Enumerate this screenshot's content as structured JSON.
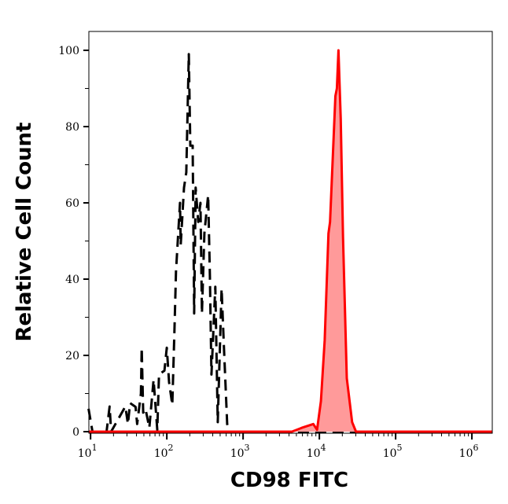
{
  "chart_data": {
    "type": "line",
    "title": "",
    "xlabel": "CD98 FITC",
    "ylabel": "Relative Cell Count",
    "x_scale": "log",
    "xlim": [
      9.5,
      1850000
    ],
    "ylim": [
      0,
      105
    ],
    "x_ticks": [
      {
        "base": "10",
        "exp": "1",
        "value": 10
      },
      {
        "base": "10",
        "exp": "2",
        "value": 100
      },
      {
        "base": "10",
        "exp": "3",
        "value": 1000
      },
      {
        "base": "10",
        "exp": "4",
        "value": 10000
      },
      {
        "base": "10",
        "exp": "5",
        "value": 100000
      },
      {
        "base": "10",
        "exp": "6",
        "value": 1000000
      }
    ],
    "y_ticks": [
      "0",
      "20",
      "40",
      "60",
      "80",
      "100"
    ],
    "grid": false,
    "legend": "none",
    "series": [
      {
        "style": "dashed",
        "color": "#000000",
        "filled": false,
        "points": [
          [
            9.4,
            6
          ],
          [
            10.6,
            0
          ],
          [
            16.2,
            0
          ],
          [
            17.8,
            6.6
          ],
          [
            18.6,
            0
          ],
          [
            28.6,
            6.6
          ],
          [
            30.9,
            2
          ],
          [
            33,
            7.5
          ],
          [
            38.9,
            6.5
          ],
          [
            40.8,
            2
          ],
          [
            45.7,
            10
          ],
          [
            46.8,
            22
          ],
          [
            49,
            5
          ],
          [
            52.5,
            6
          ],
          [
            59,
            1
          ],
          [
            67,
            13.6
          ],
          [
            75,
            0.5
          ],
          [
            79,
            15
          ],
          [
            93,
            16
          ],
          [
            100,
            22
          ],
          [
            107,
            13
          ],
          [
            118,
            7
          ],
          [
            126,
            27
          ],
          [
            132,
            42
          ],
          [
            149,
            60
          ],
          [
            152,
            49
          ],
          [
            168,
            64
          ],
          [
            180,
            68
          ],
          [
            194,
            99
          ],
          [
            203,
            75
          ],
          [
            218,
            75
          ],
          [
            228,
            31
          ],
          [
            239,
            64
          ],
          [
            258,
            55
          ],
          [
            276,
            60
          ],
          [
            289,
            31
          ],
          [
            311,
            52
          ],
          [
            348,
            62
          ],
          [
            367,
            41
          ],
          [
            385,
            15
          ],
          [
            432,
            38
          ],
          [
            465,
            2.5
          ],
          [
            523,
            37.5
          ],
          [
            561,
            22
          ],
          [
            618,
            2
          ],
          [
            660,
            0
          ],
          [
            1800000,
            0
          ]
        ]
      },
      {
        "style": "solid",
        "color": "#ff0000",
        "fill": "#ff9a9a",
        "filled": true,
        "points": [
          [
            9.5,
            0
          ],
          [
            4365,
            0
          ],
          [
            5890,
            1
          ],
          [
            8320,
            2
          ],
          [
            9330,
            0.5
          ],
          [
            10470,
            8
          ],
          [
            11750,
            24
          ],
          [
            13180,
            52
          ],
          [
            13800,
            55
          ],
          [
            16220,
            88
          ],
          [
            16980,
            90
          ],
          [
            17780,
            100
          ],
          [
            19050,
            82
          ],
          [
            20420,
            51
          ],
          [
            22910,
            14
          ],
          [
            26920,
            2.5
          ],
          [
            30200,
            0
          ],
          [
            1850000,
            0
          ]
        ]
      }
    ]
  }
}
